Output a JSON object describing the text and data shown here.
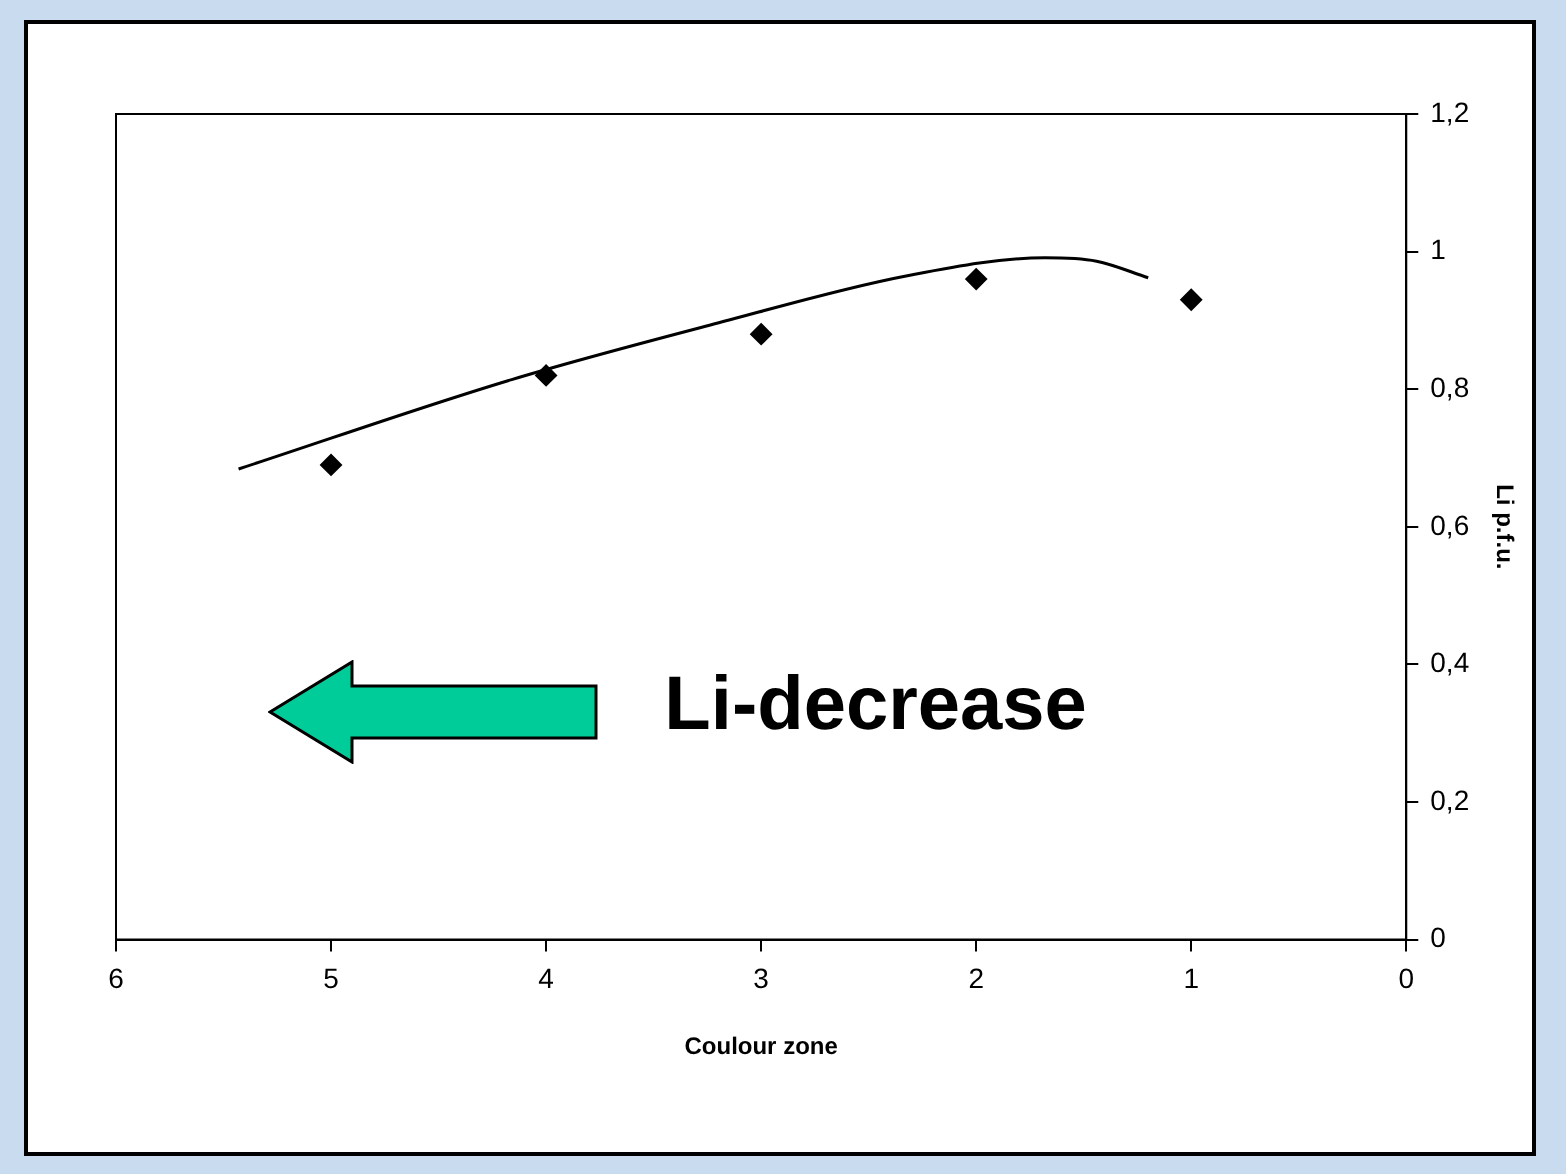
{
  "chart_data": {
    "type": "scatter",
    "xlabel": "Coulour zone",
    "ylabel": "Li p.f.u.",
    "xlim": [
      6,
      0
    ],
    "xticks": [
      6,
      5,
      4,
      3,
      2,
      1,
      0
    ],
    "ylim": [
      0,
      1.2
    ],
    "yticks": [
      0,
      {
        "value": 0.2,
        "label": "0,2"
      },
      {
        "value": 0.4,
        "label": "0,4"
      },
      {
        "value": 0.6,
        "label": "0,6"
      },
      {
        "value": 0.8,
        "label": "0,8"
      },
      1,
      {
        "value": 1.2,
        "label": "1,2"
      }
    ],
    "series": [
      {
        "type": "scatter",
        "color": "#000000",
        "marker": "diamond",
        "x": [
          5,
          4,
          3,
          2,
          1
        ],
        "values": [
          0.69,
          0.82,
          0.88,
          0.96,
          0.93
        ]
      },
      {
        "type": "line",
        "color": "#000000",
        "marker": "none",
        "line_style": "solid",
        "x": [
          5.43,
          4.16,
          3.24,
          2.32,
          1.68,
          1.44,
          1.2
        ],
        "values": [
          0.684,
          0.814,
          0.893,
          0.965,
          0.991,
          0.986,
          0.962
        ]
      }
    ],
    "annotations": [
      "Li-decrease"
    ],
    "grid": false,
    "legend": false
  }
}
